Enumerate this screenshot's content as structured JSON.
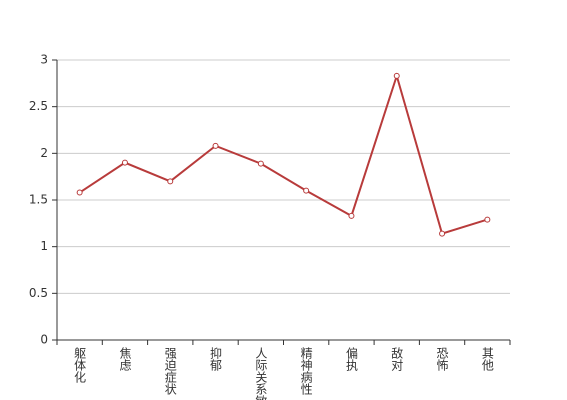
{
  "chart_data": {
    "type": "line",
    "categories": [
      "躯体化",
      "焦虑",
      "强迫症状",
      "抑郁",
      "人际关系敏感",
      "精神病性",
      "偏执",
      "敌对",
      "恐怖",
      "其他"
    ],
    "series": [
      {
        "color": "#b83b3b",
        "values": [
          1.58,
          1.9,
          1.7,
          2.08,
          1.89,
          1.6,
          1.33,
          2.83,
          1.14,
          1.29
        ]
      }
    ],
    "ylim": [
      0,
      3
    ],
    "yticks": [
      0,
      0.5,
      1,
      1.5,
      2,
      2.5,
      3
    ],
    "grid": true
  }
}
